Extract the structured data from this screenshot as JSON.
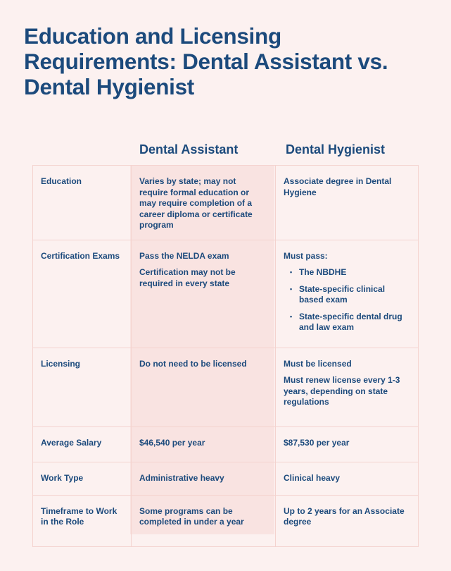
{
  "title": "Education and Licensing Requirements: Dental Assistant vs. Dental Hygienist",
  "columns": [
    "Dental Assistant",
    "Dental Hygienist"
  ],
  "rows": [
    {
      "label": "Education",
      "assistant": [
        "Varies by state; may not require formal education or may require completion of a career diploma or certificate program"
      ],
      "hygienist": [
        "Associate degree in Dental Hygiene"
      ]
    },
    {
      "label": "Certification Exams",
      "assistant": [
        "Pass the NELDA exam",
        "Certification may not be required in every state"
      ],
      "hygienist": [
        "Must pass:"
      ],
      "hygienist_list": [
        "The NBDHE",
        "State-specific clinical based exam",
        "State-specific dental drug and law exam"
      ]
    },
    {
      "label": "Licensing",
      "assistant": [
        "Do not need to be licensed"
      ],
      "hygienist": [
        "Must be licensed",
        "Must renew license every 1-3 years, depending on state regulations"
      ]
    },
    {
      "label": "Average Salary",
      "assistant": [
        "$46,540 per year"
      ],
      "hygienist": [
        "$87,530 per year"
      ]
    },
    {
      "label": "Work Type",
      "assistant": [
        "Administrative heavy"
      ],
      "hygienist": [
        "Clinical heavy"
      ]
    },
    {
      "label": "Timeframe to Work in the Role",
      "assistant": [
        "Some programs can be completed in under a year"
      ],
      "hygienist": [
        "Up to 2 years for an Associate degree"
      ]
    }
  ],
  "colors": {
    "text": "#1c4a7c",
    "background": "#fcf1f0",
    "highlight_column": "#f9e3e1",
    "border": "#f4d3cf"
  }
}
